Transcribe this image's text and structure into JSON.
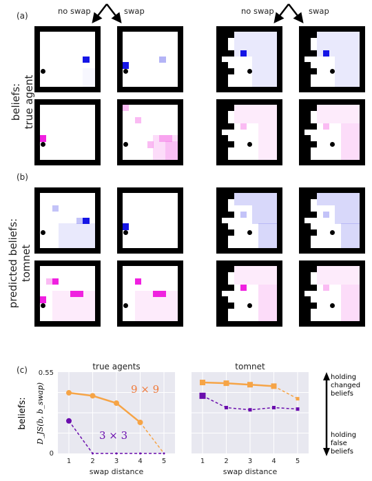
{
  "panels": {
    "a": "(a)",
    "b": "(b)",
    "c": "(c)"
  },
  "column_labels": {
    "no_swap": "no swap",
    "swap": "swap"
  },
  "row_labels": {
    "a": [
      "beliefs:",
      "true agent"
    ],
    "b": [
      "predicted beliefs:",
      "tomnet"
    ]
  },
  "colors": {
    "blue": "#1515e6",
    "magenta": "#f020e0",
    "orange": "#f6a446",
    "purple": "#6a0dad",
    "plot_bg": "#e8e8f0"
  },
  "legend_arrow": {
    "top": [
      "holding",
      "changed",
      "beliefs"
    ],
    "bottom": [
      "holding",
      "false",
      "beliefs"
    ]
  },
  "chart_data": [
    {
      "type": "line",
      "title": "true agents",
      "xlabel": "swap distance",
      "ylabel": [
        "beliefs:",
        "D_JS(b, b_swap)"
      ],
      "ylim": [
        0,
        0.55
      ],
      "yticks": [
        "0",
        "0.55"
      ],
      "x": [
        1,
        2,
        3,
        4,
        5
      ],
      "series": [
        {
          "name": "9 × 9",
          "values": [
            0.41,
            0.39,
            0.34,
            0.21,
            0.0
          ],
          "color": "#f6a446",
          "marker": "circle",
          "dashed_last_segment": true
        },
        {
          "name": "3 × 3",
          "values": [
            0.22,
            0.0,
            0.0,
            0.0,
            0.0
          ],
          "color": "#6a0dad",
          "marker": "circle",
          "dashed": true
        }
      ]
    },
    {
      "type": "line",
      "title": "tomnet",
      "xlabel": "swap distance",
      "ylim": [
        0,
        0.55
      ],
      "x": [
        1,
        2,
        3,
        4,
        5
      ],
      "series": [
        {
          "values": [
            0.48,
            0.475,
            0.465,
            0.455,
            0.37
          ],
          "color": "#f6a446",
          "marker": "square",
          "dashed_last_segment": true
        },
        {
          "values": [
            0.39,
            0.31,
            0.295,
            0.31,
            0.3
          ],
          "color": "#6a0dad",
          "marker": "square",
          "dashed": true
        }
      ]
    }
  ]
}
